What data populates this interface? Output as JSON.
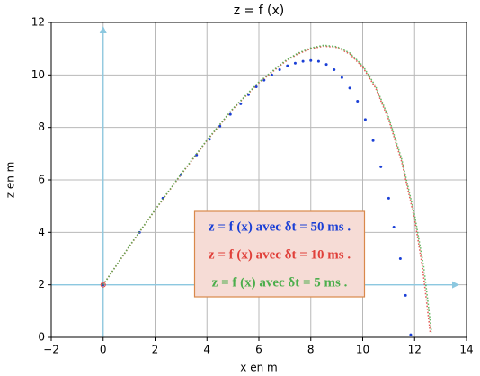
{
  "chart_data": {
    "type": "scatter",
    "title": "z = f (x)",
    "x_label": "x en m",
    "y_label": "z en m",
    "xlim": [
      -2,
      14
    ],
    "ylim": [
      0,
      12
    ],
    "xticks": [
      {
        "value": -2,
        "label": "−2"
      },
      0,
      2,
      4,
      6,
      8,
      10,
      12,
      14
    ],
    "yticks": [
      0,
      2,
      4,
      6,
      8,
      10,
      12
    ],
    "grid": true,
    "legend_loc": "center",
    "series": [
      {
        "name": "z = f (x) avec δt = 50 ms .",
        "color": "#1a3fd6",
        "style": "dots",
        "x": [
          0,
          1.4,
          2.3,
          3.0,
          3.6,
          4.1,
          4.5,
          4.9,
          5.3,
          5.6,
          5.9,
          6.2,
          6.5,
          6.8,
          7.1,
          7.4,
          7.7,
          8.0,
          8.3,
          8.6,
          8.9,
          9.2,
          9.5,
          9.8,
          10.1,
          10.4,
          10.7,
          11.0,
          11.2,
          11.45,
          11.65,
          11.85
        ],
        "y": [
          2,
          4.0,
          5.3,
          6.2,
          6.95,
          7.55,
          8.05,
          8.5,
          8.9,
          9.25,
          9.55,
          9.8,
          10.0,
          10.2,
          10.35,
          10.45,
          10.52,
          10.55,
          10.52,
          10.4,
          10.2,
          9.9,
          9.5,
          9.0,
          8.3,
          7.5,
          6.5,
          5.3,
          4.2,
          3.0,
          1.6,
          0.1
        ]
      },
      {
        "name": "z = f (x) avec δt = 10 ms .",
        "color": "#e0403a",
        "style": "dotted-line",
        "x": [
          0,
          1,
          2,
          3,
          4,
          5,
          6,
          7,
          7.5,
          8,
          8.5,
          9,
          9.5,
          10,
          10.5,
          11,
          11.5,
          12,
          12.3,
          12.6
        ],
        "y": [
          2,
          3.45,
          4.85,
          6.2,
          7.5,
          8.7,
          9.7,
          10.5,
          10.8,
          11.0,
          11.1,
          11.05,
          10.8,
          10.3,
          9.5,
          8.3,
          6.7,
          4.5,
          2.7,
          0.2
        ]
      },
      {
        "name": "z = f (x) avec δt = 5 ms .",
        "color": "#4cae4c",
        "style": "dotted-line",
        "x": [
          0,
          1,
          2,
          3,
          4,
          5,
          6,
          7,
          7.5,
          8,
          8.5,
          9,
          9.5,
          10,
          10.5,
          11,
          11.5,
          12,
          12.35,
          12.65
        ],
        "y": [
          2,
          3.46,
          4.86,
          6.22,
          7.52,
          8.72,
          9.73,
          10.53,
          10.83,
          11.03,
          11.13,
          11.08,
          10.84,
          10.35,
          9.56,
          8.38,
          6.8,
          4.65,
          2.7,
          0.2
        ]
      }
    ]
  }
}
